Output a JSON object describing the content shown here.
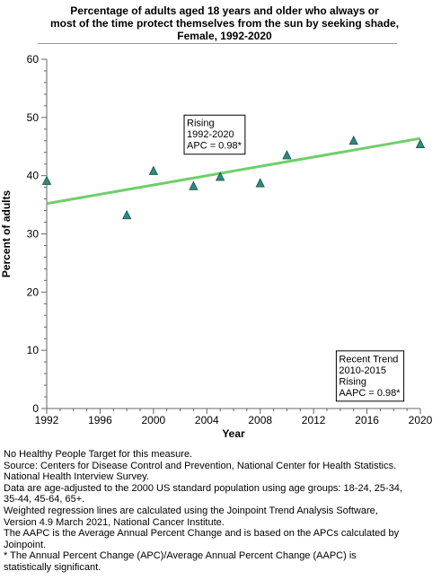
{
  "title_lines": [
    "Percentage of adults aged 18 years and older who always or",
    "most of the time protect themselves from the sun by seeking shade,",
    "Female,  1992-2020"
  ],
  "notes": [
    "No Healthy People Target for this measure.",
    "Source: Centers for Disease Control and Prevention, National Center for Health Statistics.",
    "National Health Interview Survey.",
    "Data are age-adjusted to the 2000 US standard population using age groups: 18-24, 25-34,",
    "35-44, 45-64, 65+.",
    "Weighted regression lines are calculated using the Joinpoint Trend Analysis Software,",
    "Version 4.9 March 2021, National Cancer Institute.",
    "The AAPC is the Average Annual Percent Change and is based on the APCs calculated by",
    "Joinpoint.",
    "* The Annual Percent Change (APC)/Average Annual Percent Change (AAPC) is",
    "statistically significant."
  ],
  "chart_data": {
    "type": "scatter",
    "xlabel": "Year",
    "ylabel": "Percent of adults",
    "xlim": [
      1992,
      2020
    ],
    "ylim": [
      0,
      60
    ],
    "x_ticks": [
      1992,
      1996,
      2000,
      2004,
      2008,
      2012,
      2016,
      2020
    ],
    "y_ticks": [
      0,
      10,
      20,
      30,
      40,
      50,
      60
    ],
    "grid": false,
    "points": [
      {
        "x": 1992,
        "y": 39.1
      },
      {
        "x": 1998,
        "y": 33.2
      },
      {
        "x": 2000,
        "y": 40.8
      },
      {
        "x": 2003,
        "y": 38.2
      },
      {
        "x": 2005,
        "y": 39.8
      },
      {
        "x": 2008,
        "y": 38.7
      },
      {
        "x": 2010,
        "y": 43.5
      },
      {
        "x": 2015,
        "y": 46.0
      },
      {
        "x": 2020,
        "y": 45.4
      }
    ],
    "trend_line": [
      {
        "x": 1992,
        "y": 35.2
      },
      {
        "x": 2020,
        "y": 46.4
      }
    ],
    "annotations": [
      {
        "lines": [
          "Rising",
          "1992-2020",
          "APC =  0.98*"
        ],
        "anchor": {
          "x": 2002.3,
          "y": 50.4
        }
      },
      {
        "lines": [
          "Recent Trend",
          "2010-2015",
          "Rising",
          "AAPC =  0.98*"
        ],
        "anchor": {
          "x": 2013.7,
          "y": 9.9
        }
      }
    ],
    "colors": {
      "marker_fill": "#2e8b7e",
      "marker_stroke": "#1e4f48",
      "trend_line": "#6ecf6a",
      "axis": "#666666"
    }
  }
}
